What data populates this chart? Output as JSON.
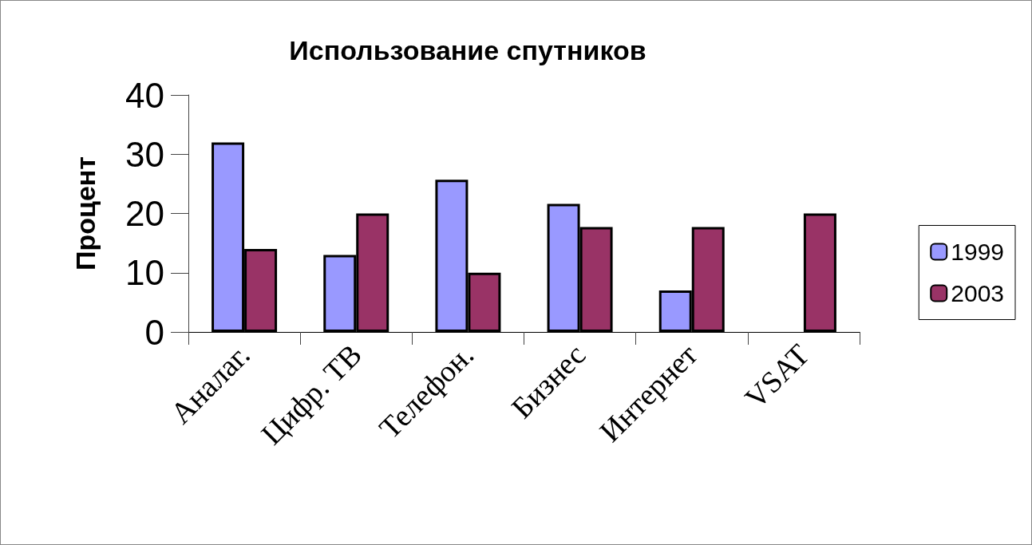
{
  "chart_data": {
    "type": "bar",
    "title": "Использование спутников",
    "ylabel": "Процент",
    "categories": [
      "Аналаг.",
      "Цифр. ТВ",
      "Телефон.",
      "Бизнес",
      "Интернет",
      "VSAT"
    ],
    "series": [
      {
        "name": "1999",
        "color": "#9999ff",
        "values": [
          32,
          13,
          25.7,
          21.6,
          7,
          null
        ]
      },
      {
        "name": "2003",
        "color": "#993366",
        "values": [
          14,
          20,
          10,
          17.7,
          17.7,
          20
        ]
      }
    ],
    "ylim": [
      0,
      40
    ],
    "yticks": [
      0,
      10,
      20,
      30,
      40
    ],
    "grid": false,
    "legend": "right"
  }
}
